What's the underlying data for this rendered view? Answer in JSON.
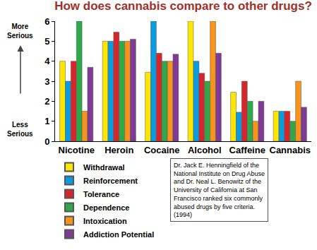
{
  "chart_data": {
    "type": "bar",
    "title": "How does cannabis compare to other drugs?",
    "categories": [
      "Nicotine",
      "Heroin",
      "Cocaine",
      "Alcohol",
      "Caffeine",
      "Cannabis"
    ],
    "series": [
      {
        "name": "Withdrawal",
        "color": "#ffe600",
        "values": [
          4,
          5,
          3.45,
          6,
          2.45,
          1.5
        ]
      },
      {
        "name": "Reinforcement",
        "color": "#0a9be0",
        "values": [
          3,
          5,
          6,
          4,
          1.45,
          1.5
        ]
      },
      {
        "name": "Tolerance",
        "color": "#d7262b",
        "values": [
          4,
          5.45,
          4.4,
          3.4,
          3,
          1.5
        ]
      },
      {
        "name": "Dependence",
        "color": "#2ea84a",
        "values": [
          6,
          5,
          4,
          3,
          2,
          1
        ]
      },
      {
        "name": "Intoxication",
        "color": "#f7941d",
        "values": [
          1.5,
          5,
          4,
          6,
          1,
          3
        ]
      },
      {
        "name": "Addiction Potential",
        "color": "#7e3a95",
        "values": [
          3.7,
          5.1,
          4.35,
          4.4,
          2,
          1.7
        ]
      }
    ],
    "ylim": [
      0,
      6
    ],
    "yticks": [
      0,
      1,
      2,
      3,
      4,
      5,
      6
    ],
    "grid": false,
    "legend": "bottom left",
    "annotations": [
      "More Serious",
      "Less Serious",
      "Dr. Jack E. Henningfield of the National Institute on Drug Abuse and Dr. Neal L. Benowitz of the University of California at San Francisco ranked six commonly abused drugs by five criteria. (1994)"
    ]
  }
}
